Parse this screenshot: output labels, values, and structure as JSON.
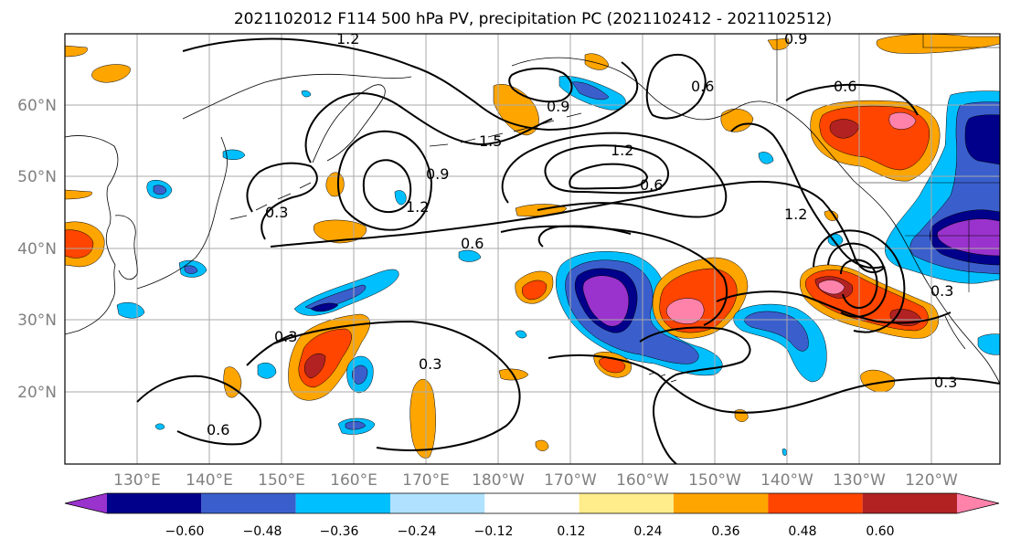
{
  "figure": {
    "title": "2021102012 F114 500 hPa PV, precipitation PC (2021102412 - 2021102512)"
  },
  "map": {
    "lat_labels": [
      "60°N",
      "50°N",
      "40°N",
      "30°N",
      "20°N"
    ],
    "lon_labels": [
      "130°E",
      "140°E",
      "150°E",
      "160°E",
      "170°E",
      "180°W",
      "170°W",
      "160°W",
      "150°W",
      "140°W",
      "130°W",
      "120°W"
    ],
    "gridlines": true,
    "contour_labels": [
      "1.2",
      "0.9",
      "0.6",
      "0.9",
      "0.6",
      "1.2",
      "1.5",
      "0.9",
      "1.2",
      "0.3",
      "0.6",
      "1.2",
      "0.6",
      "0.3",
      "0.3",
      "0.6",
      "0.3",
      "0.3"
    ]
  },
  "colorbar": {
    "ticks": [
      "−0.60",
      "−0.48",
      "−0.36",
      "−0.24",
      "−0.12",
      "0.12",
      "0.24",
      "0.36",
      "0.48",
      "0.60"
    ],
    "bins": [
      "#9a32cd",
      "#00008b",
      "#3a5fcd",
      "#00bfff",
      "#b0e2ff",
      "#ffffff",
      "#ffec8b",
      "#ffa500",
      "#ff4500",
      "#b22222",
      "#ff82ab"
    ],
    "extend": "both"
  },
  "colors": {
    "land_outline": "#000000",
    "grid": "#aaaaaa",
    "pv_contour": "#000000"
  }
}
